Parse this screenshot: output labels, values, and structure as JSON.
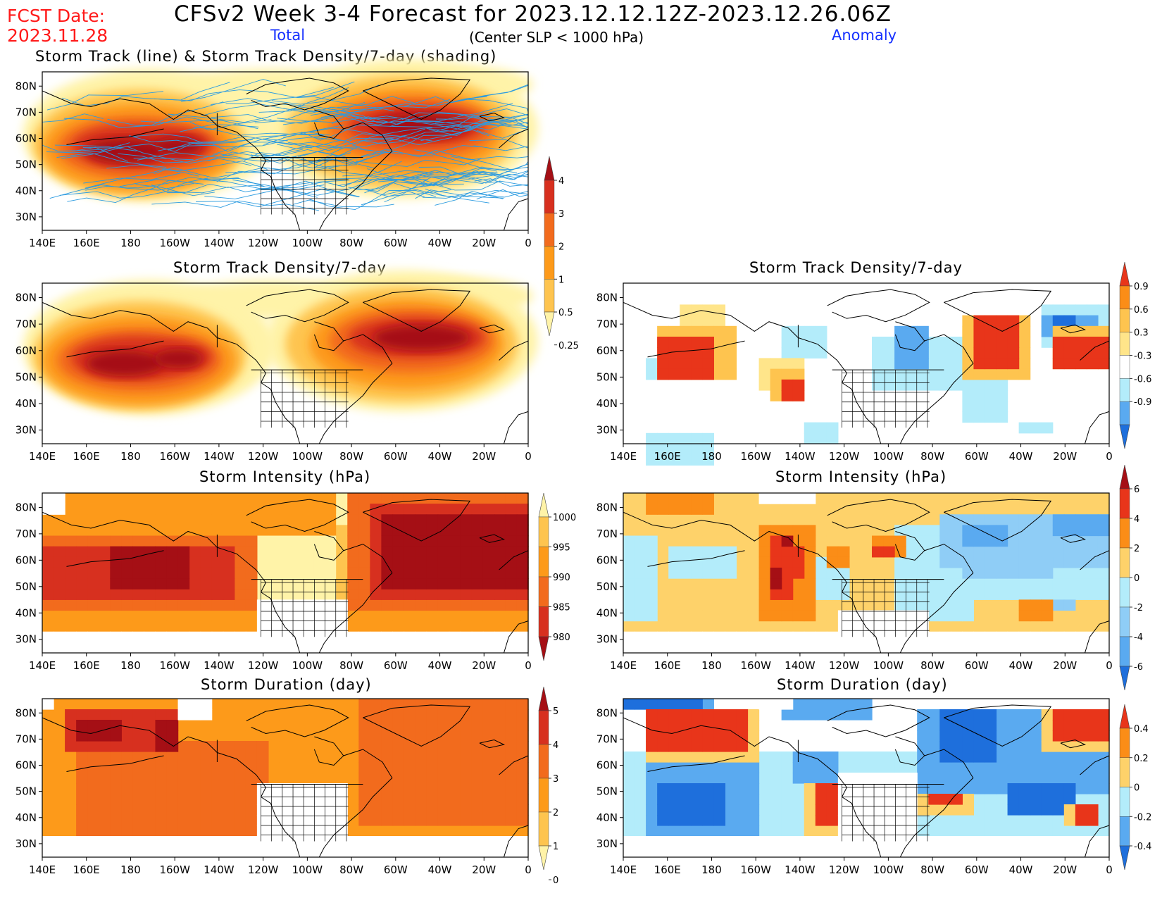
{
  "header": {
    "fcst_label": "FCST Date:",
    "fcst_date": "2023.11.28",
    "title": "CFSv2 Week 3-4 Forecast for 2023.12.12.12Z-2023.12.26.06Z",
    "total_label": "Total",
    "slp_note": "(Center SLP < 1000 hPa)",
    "anomaly_label": "Anomaly"
  },
  "axis": {
    "lon_labels": [
      "140E",
      "160E",
      "180",
      "160W",
      "140W",
      "120W",
      "100W",
      "80W",
      "60W",
      "40W",
      "20W",
      "0"
    ],
    "lat_labels": [
      "80N",
      "70N",
      "60N",
      "50N",
      "40N",
      "30N"
    ]
  },
  "panels": {
    "track": {
      "title": "Storm Track (line) & Storm Track Density/7-day (shading)"
    },
    "density_total": {
      "title": "Storm Track Density/7-day"
    },
    "density_anom": {
      "title": "Storm Track Density/7-day"
    },
    "intensity_total": {
      "title": "Storm Intensity (hPa)"
    },
    "intensity_anom": {
      "title": "Storm Intensity (hPa)"
    },
    "duration_total": {
      "title": "Storm Duration (day)"
    },
    "duration_anom": {
      "title": "Storm Duration (day)"
    }
  },
  "colorbars": {
    "density_total": {
      "labels": [
        "4",
        "3",
        "2",
        "1",
        "0.5",
        "0.25"
      ],
      "colors": [
        "#a50f15",
        "#d7301f",
        "#f26b1d",
        "#fd9a1a",
        "#fec44f",
        "#fff3a8"
      ]
    },
    "density_anom": {
      "labels": [
        "0.9",
        "0.6",
        "0.3",
        "-0.3",
        "-0.6",
        "-0.9"
      ],
      "colors": [
        "#e8351a",
        "#fb8d17",
        "#fec44f",
        "#ffe58a",
        "#ffffff",
        "#b3ecfa",
        "#5aaaf0",
        "#1e6fdc"
      ]
    },
    "intensity_total": {
      "labels": [
        "1000",
        "995",
        "990",
        "985",
        "980"
      ],
      "colors": [
        "#fff3a8",
        "#fec44f",
        "#fd9a1a",
        "#f26b1d",
        "#d7301f",
        "#a50f15"
      ]
    },
    "intensity_anom": {
      "labels": [
        "6",
        "4",
        "2",
        "0",
        "-2",
        "-4",
        "-6"
      ],
      "colors": [
        "#a50f15",
        "#e8351a",
        "#fb8d17",
        "#fed26a",
        "#b3ecfa",
        "#8fcdf6",
        "#5aaaf0",
        "#1e6fdc"
      ]
    },
    "duration_total": {
      "labels": [
        "5",
        "4",
        "3",
        "2",
        "1",
        "0"
      ],
      "colors": [
        "#a50f15",
        "#d7301f",
        "#f26b1d",
        "#fd9a1a",
        "#fec44f",
        "#fff3a8"
      ]
    },
    "duration_anom": {
      "labels": [
        "0.4",
        "0.2",
        "0",
        "-0.2",
        "-0.4"
      ],
      "colors": [
        "#e8351a",
        "#fb8d17",
        "#fed26a",
        "#b3ecfa",
        "#5aaaf0",
        "#1e6fdc"
      ]
    }
  }
}
